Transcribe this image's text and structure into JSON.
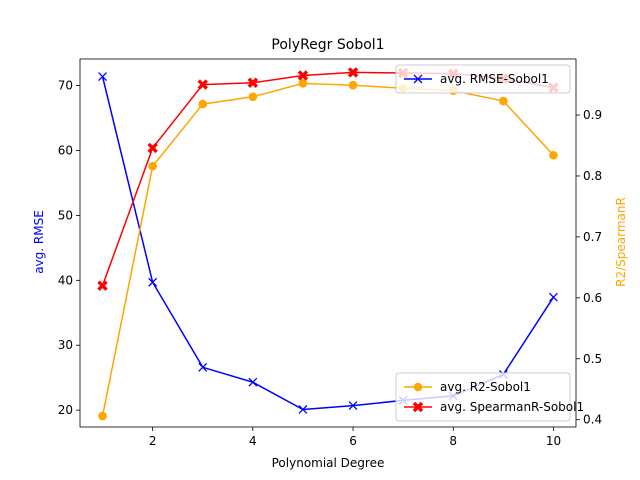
{
  "chart_data": {
    "type": "line",
    "title": "PolyRegr Sobol1",
    "xlabel": "Polynomial Degree",
    "ylabel_left": "avg. RMSE",
    "ylabel_right": "R2/SpearmanR",
    "xlim": [
      0.55,
      10.45
    ],
    "ylim_left": [
      17.4,
      74.1
    ],
    "ylim_right": [
      0.388,
      0.992
    ],
    "xticks": [
      2,
      4,
      6,
      8,
      10
    ],
    "yticks_left": [
      20,
      30,
      40,
      50,
      60,
      70
    ],
    "yticks_right": [
      0.4,
      0.5,
      0.6,
      0.7,
      0.8,
      0.9
    ],
    "x": [
      1,
      2,
      3,
      4,
      5,
      6,
      7,
      8,
      9,
      10
    ],
    "colors": {
      "left_axis_label": "#0000ff",
      "right_axis_label": "#ffa500"
    },
    "series": [
      {
        "name": "avg. RMSE-Sobol1",
        "axis": "left",
        "color": "#0000ff",
        "marker": "x",
        "values": [
          71.4,
          39.7,
          26.6,
          24.3,
          20.1,
          20.7,
          21.5,
          22.2,
          25.5,
          37.4
        ]
      },
      {
        "name": "avg. R2-Sobol1",
        "axis": "right",
        "color": "#ffa500",
        "marker": "circle",
        "values": [
          0.406,
          0.816,
          0.918,
          0.93,
          0.952,
          0.949,
          0.944,
          0.94,
          0.923,
          0.834
        ]
      },
      {
        "name": "avg. SpearmanR-Sobol1",
        "axis": "right",
        "color": "#ff0000",
        "marker": "filled-x",
        "values": [
          0.62,
          0.846,
          0.95,
          0.953,
          0.965,
          0.97,
          0.969,
          0.968,
          0.96,
          0.945
        ]
      }
    ],
    "legends": [
      {
        "placement": "upper-right",
        "entries": [
          "avg. RMSE-Sobol1"
        ]
      },
      {
        "placement": "lower-right",
        "entries": [
          "avg. R2-Sobol1",
          "avg. SpearmanR-Sobol1"
        ]
      }
    ],
    "grid": false
  }
}
